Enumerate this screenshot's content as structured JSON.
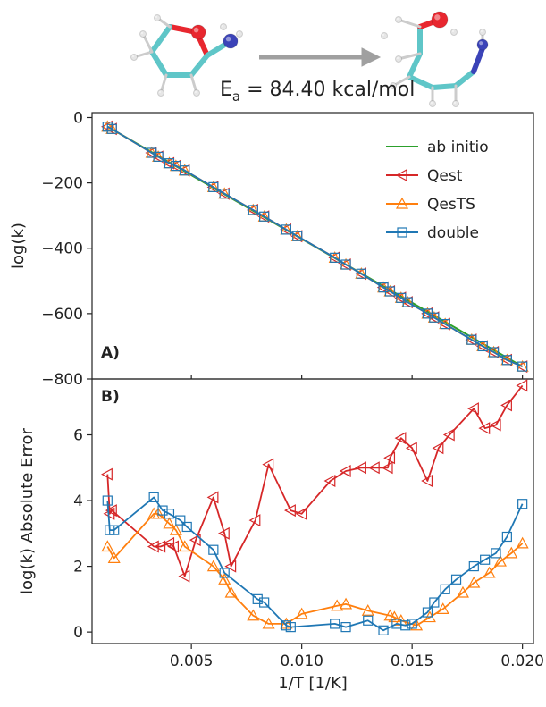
{
  "reaction": {
    "energy_label": "E",
    "energy_subscript": "a",
    "energy_value": " = 84.40 kcal/mol"
  },
  "colors": {
    "ab_initio": "#2ca02c",
    "qest": "#d62728",
    "qests": "#ff7f0e",
    "double": "#1f77b4",
    "arrow": "#a0a0a0",
    "carbon": "#5fc6c8",
    "oxygen": "#e8272f",
    "nitrogen": "#3b43b8",
    "hydrogen": "#e6e6e6"
  },
  "chart_data": [
    {
      "panel_label": "A)",
      "type": "line",
      "xlim": [
        0.0005,
        0.0205
      ],
      "ylim": [
        -800,
        15
      ],
      "yticks": [
        0,
        -200,
        -400,
        -600,
        -800
      ],
      "ytick_labels": [
        "0",
        "−200",
        "−400",
        "−600",
        "−800"
      ],
      "ylabel": "log(k)",
      "legend_position": "top-right",
      "series": [
        {
          "name": "ab initio",
          "color_key": "ab_initio",
          "marker": "none",
          "x": [
            0.0012,
            0.02
          ],
          "y": [
            -28,
            -762
          ]
        },
        {
          "name": "Qest",
          "color_key": "qest",
          "marker": "triangle-left",
          "x": [
            0.0012,
            0.0014,
            0.0032,
            0.0035,
            0.004,
            0.0043,
            0.0047,
            0.006,
            0.0065,
            0.0078,
            0.0083,
            0.0093,
            0.0098,
            0.0115,
            0.012,
            0.0127,
            0.0137,
            0.014,
            0.0145,
            0.0148,
            0.0157,
            0.016,
            0.0165,
            0.0177,
            0.0182,
            0.0187,
            0.0193,
            0.02
          ],
          "y": [
            -28,
            -35,
            -108,
            -120,
            -140,
            -148,
            -162,
            -213,
            -233,
            -283,
            -303,
            -343,
            -363,
            -429,
            -450,
            -478,
            -520,
            -532,
            -552,
            -565,
            -600,
            -612,
            -632,
            -680,
            -700,
            -718,
            -742,
            -762
          ]
        },
        {
          "name": "QesTS",
          "color_key": "qests",
          "marker": "triangle-up",
          "x": [
            0.0012,
            0.0014,
            0.0032,
            0.0035,
            0.004,
            0.0043,
            0.0047,
            0.006,
            0.0065,
            0.0078,
            0.0083,
            0.0093,
            0.0098,
            0.0115,
            0.012,
            0.0127,
            0.0137,
            0.014,
            0.0145,
            0.0148,
            0.0157,
            0.016,
            0.0165,
            0.0177,
            0.0182,
            0.0187,
            0.0193,
            0.02
          ],
          "y": [
            -28,
            -35,
            -108,
            -120,
            -140,
            -148,
            -162,
            -213,
            -233,
            -283,
            -303,
            -343,
            -363,
            -429,
            -450,
            -478,
            -520,
            -532,
            -552,
            -565,
            -600,
            -612,
            -632,
            -680,
            -700,
            -718,
            -742,
            -762
          ]
        },
        {
          "name": "double",
          "color_key": "double",
          "marker": "square",
          "x": [
            0.0012,
            0.0014,
            0.0032,
            0.0035,
            0.004,
            0.0043,
            0.0047,
            0.006,
            0.0065,
            0.0078,
            0.0083,
            0.0093,
            0.0098,
            0.0115,
            0.012,
            0.0127,
            0.0137,
            0.014,
            0.0145,
            0.0148,
            0.0157,
            0.016,
            0.0165,
            0.0177,
            0.0182,
            0.0187,
            0.0193,
            0.02
          ],
          "y": [
            -28,
            -35,
            -108,
            -120,
            -140,
            -148,
            -162,
            -213,
            -233,
            -283,
            -303,
            -343,
            -363,
            -429,
            -450,
            -478,
            -520,
            -532,
            -552,
            -565,
            -600,
            -612,
            -632,
            -680,
            -700,
            -718,
            -742,
            -762
          ]
        }
      ]
    },
    {
      "panel_label": "B)",
      "type": "line",
      "xlim": [
        0.0005,
        0.0205
      ],
      "ylim": [
        -0.35,
        7.7
      ],
      "xticks": [
        0.005,
        0.01,
        0.015,
        0.02
      ],
      "xtick_labels": [
        "0.005",
        "0.010",
        "0.015",
        "0.020"
      ],
      "yticks": [
        0,
        2,
        4,
        6
      ],
      "ytick_labels": [
        "0",
        "2",
        "4",
        "6"
      ],
      "xlabel": "1/T [1/K]",
      "ylabel": "log(k) Absolute Error",
      "series": [
        {
          "name": "Qest",
          "color_key": "qest",
          "marker": "triangle-left",
          "x": [
            0.0012,
            0.0013,
            0.0014,
            0.0033,
            0.0036,
            0.004,
            0.0042,
            0.0047,
            0.0052,
            0.006,
            0.0065,
            0.0068,
            0.0079,
            0.0085,
            0.0095,
            0.01,
            0.0113,
            0.012,
            0.0127,
            0.0133,
            0.0139,
            0.014,
            0.0145,
            0.015,
            0.0157,
            0.0162,
            0.0167,
            0.0178,
            0.0183,
            0.0188,
            0.0193,
            0.02
          ],
          "y": [
            4.8,
            3.6,
            3.7,
            2.6,
            2.6,
            2.7,
            2.6,
            1.7,
            2.8,
            4.1,
            3.0,
            2.0,
            3.4,
            5.1,
            3.7,
            3.6,
            4.6,
            4.9,
            5.0,
            5.0,
            5.0,
            5.3,
            5.9,
            5.6,
            4.6,
            5.6,
            6.0,
            6.8,
            6.2,
            6.3,
            6.9,
            7.5
          ]
        },
        {
          "name": "QesTS",
          "color_key": "qests",
          "marker": "triangle-up",
          "x": [
            0.0012,
            0.0015,
            0.0033,
            0.0035,
            0.004,
            0.0043,
            0.0047,
            0.006,
            0.0065,
            0.0068,
            0.0078,
            0.0085,
            0.0093,
            0.01,
            0.0116,
            0.012,
            0.013,
            0.014,
            0.0142,
            0.0145,
            0.0152,
            0.0158,
            0.0164,
            0.0173,
            0.0178,
            0.0185,
            0.019,
            0.0195,
            0.02
          ],
          "y": [
            2.6,
            2.25,
            3.6,
            3.6,
            3.3,
            3.1,
            2.6,
            2.0,
            1.6,
            1.2,
            0.5,
            0.25,
            0.25,
            0.55,
            0.8,
            0.85,
            0.65,
            0.5,
            0.45,
            0.35,
            0.2,
            0.45,
            0.7,
            1.2,
            1.5,
            1.8,
            2.15,
            2.4,
            2.7
          ]
        },
        {
          "name": "double",
          "color_key": "double",
          "marker": "square",
          "x": [
            0.0012,
            0.0013,
            0.0015,
            0.0033,
            0.0037,
            0.004,
            0.0045,
            0.0048,
            0.006,
            0.0065,
            0.008,
            0.0083,
            0.0093,
            0.0095,
            0.0115,
            0.012,
            0.013,
            0.0137,
            0.0143,
            0.0147,
            0.015,
            0.0157,
            0.016,
            0.0165,
            0.017,
            0.0178,
            0.0183,
            0.0188,
            0.0193,
            0.02
          ],
          "y": [
            4.0,
            3.1,
            3.1,
            4.1,
            3.7,
            3.6,
            3.4,
            3.2,
            2.5,
            1.8,
            1.0,
            0.9,
            0.2,
            0.15,
            0.25,
            0.15,
            0.35,
            0.05,
            0.25,
            0.2,
            0.25,
            0.6,
            0.9,
            1.3,
            1.6,
            2.0,
            2.2,
            2.4,
            2.9,
            3.9
          ]
        }
      ]
    }
  ]
}
